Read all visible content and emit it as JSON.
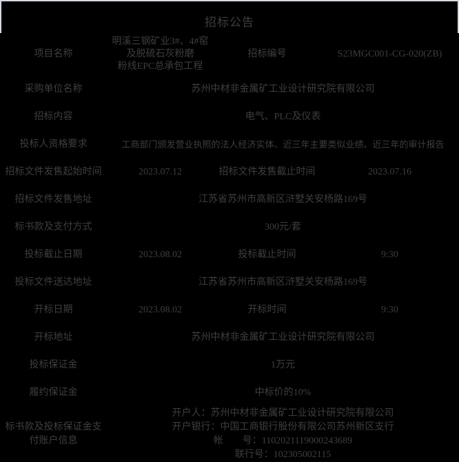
{
  "page": {
    "title": "招标公告"
  },
  "colors": {
    "background": "#000000",
    "text": "#3e3e43",
    "title_border": "#d4d8e2"
  },
  "table": {
    "rows": [
      {
        "label": "项目名称",
        "value": "明溪三钢矿业3#、4#窑\n及脱硫石灰粉磨\n粉线EPC总承包工程",
        "label2": "招标编号",
        "value2": "S23MGC001-CG-020(ZB)"
      },
      {
        "label": "采购单位名称",
        "value": "苏州中材非金属矿工业设计研究院有限公司"
      },
      {
        "label": "招标内容",
        "value": "电气、PLC及仪表"
      },
      {
        "label": "投标人资格要求",
        "value": "工商部门颁发营业执照的法人经济实体、近三年主要类似业绩、近三年的审计报告"
      },
      {
        "label": "招标文件发售起始时间",
        "value": "2023.07.12",
        "label2": "招标文件发售截止时间",
        "value2": "2023.07.16"
      },
      {
        "label": "招标文件发售地址",
        "value": "江苏省苏州市高新区浒墅关安杨路169号"
      },
      {
        "label": "标书款及支付方式",
        "value": "300元/套"
      },
      {
        "label": "投标截止日期",
        "value": "2023.08.02",
        "label2": "投标截止时间",
        "value2": "9:30"
      },
      {
        "label": "投标文件送达地址",
        "value": "江苏省苏州市高新区浒墅关安杨路169号"
      },
      {
        "label": "开标日期",
        "value": "2023.08.02",
        "label2": "开标时间",
        "value2": "9:30"
      },
      {
        "label": "开标地址",
        "value": "苏州中材非金属矿工业设计研究院有限公司"
      },
      {
        "label": "投标保证金",
        "value": "1万元"
      },
      {
        "label": "履约保证金",
        "value": "中标价的10%"
      },
      {
        "label": "标书款及投标保证金支\n付账户信息",
        "value": "开户人：苏州中材非金属矿工业设计研究院有限公司\n开户银行：中国工商银行股份有限公司苏州新区支行\n帐　　号：1102021119000243689\n联行号：102305002115"
      }
    ]
  }
}
